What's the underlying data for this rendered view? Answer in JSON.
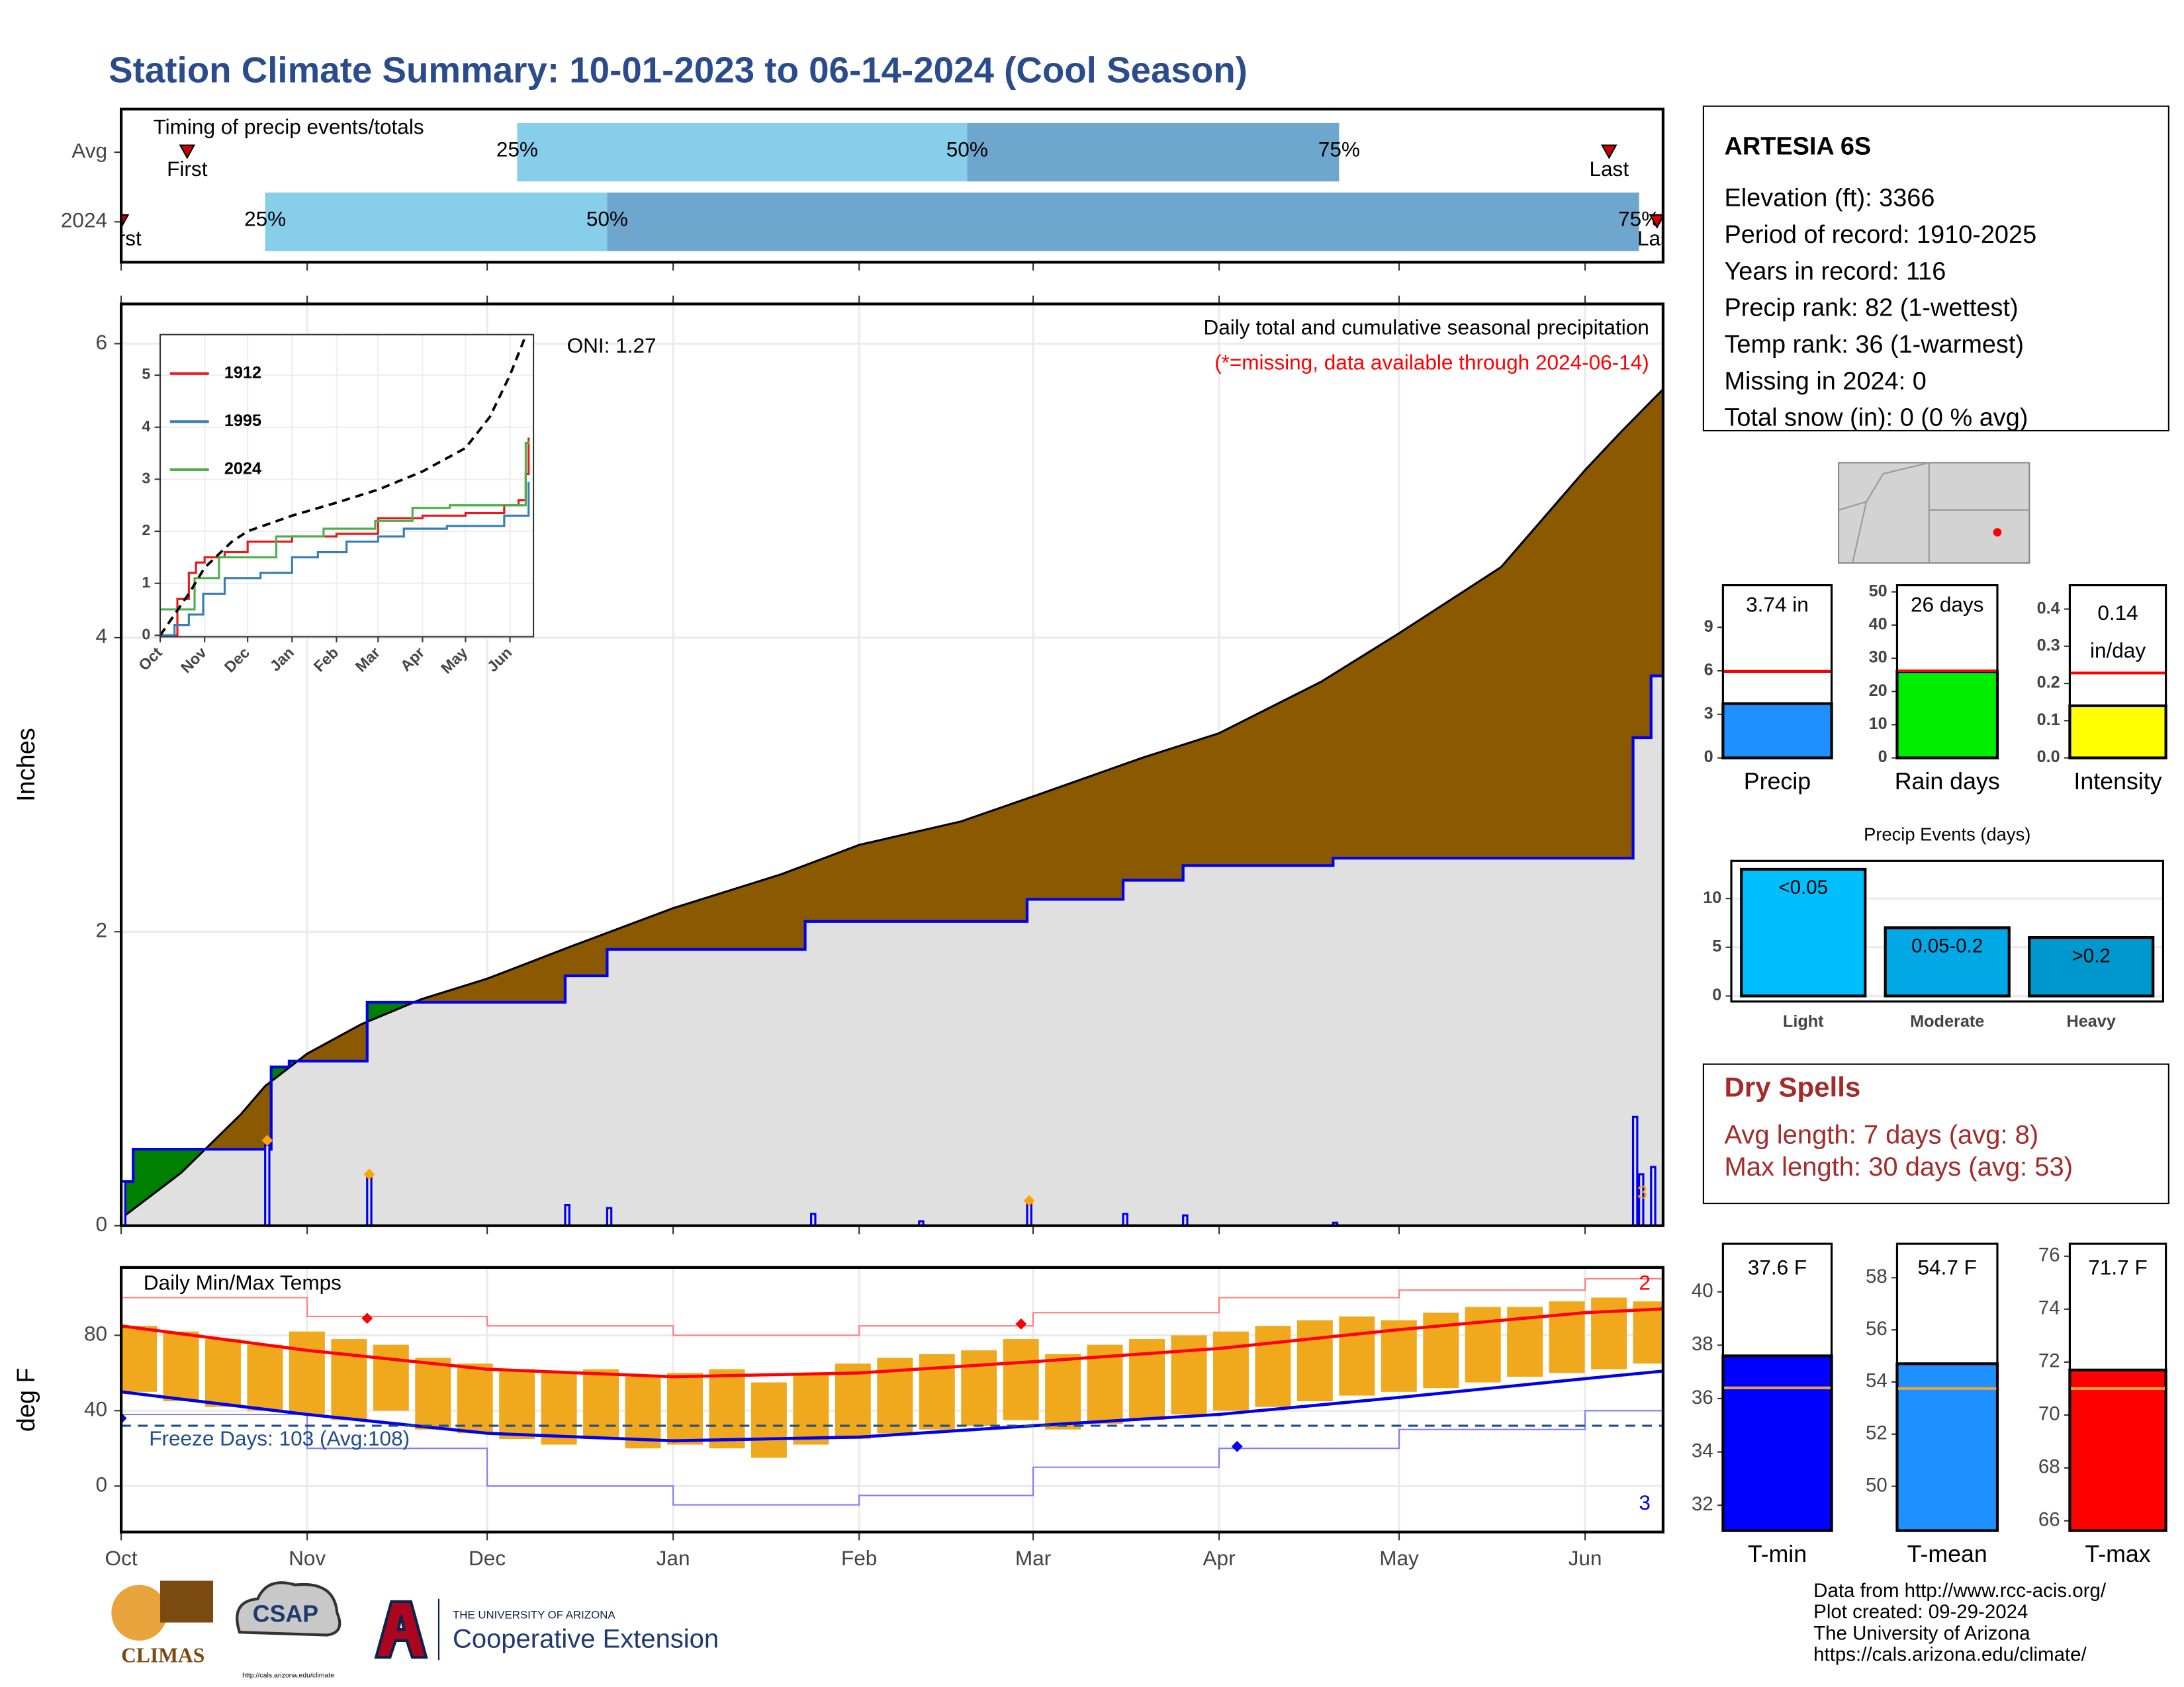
{
  "title": "Station Climate Summary: 10-01-2023 to 06-14-2024 (Cool Season)",
  "station": {
    "name": "ARTESIA 6S",
    "lines": [
      "Elevation (ft): 3366",
      "Period of record: 1910-2025",
      "Years in record: 116",
      "Precip rank: 82 (1-wettest)",
      "Temp rank: 36 (1-warmest)",
      "Missing in 2024: 0",
      "Total snow (in): 0 (0 % avg)"
    ]
  },
  "dry_spells": {
    "title": "Dry Spells",
    "lines": [
      "Avg length: 7 days (avg: 8)",
      "Max length: 30 days (avg: 53)"
    ]
  },
  "footer": [
    "Data from http://www.rcc-acis.org/",
    "Plot created: 09-29-2024",
    "The University of Arizona",
    "https://cals.arizona.edu/climate/"
  ],
  "logos": {
    "climas": "CLIMAS",
    "csap": "CSAP",
    "csap_url": "http://cals.arizona.edu/climate",
    "ua": "THE UNIVERSITY OF ARIZONA",
    "extension": "Cooperative Extension"
  },
  "chart_data": [
    {
      "type": "timing",
      "title": "Timing of precip events/totals",
      "categories": [
        "Avg",
        "2024"
      ],
      "xlim": [
        0,
        257
      ],
      "xticks": [
        0,
        31,
        61,
        92,
        123,
        152,
        183,
        213,
        244
      ],
      "series": [
        {
          "name": "First",
          "values": [
            11,
            0
          ]
        },
        {
          "name": "25%",
          "values": [
            66,
            24
          ]
        },
        {
          "name": "50%",
          "values": [
            141,
            81
          ]
        },
        {
          "name": "75%",
          "values": [
            203,
            253
          ]
        },
        {
          "name": "Last",
          "values": [
            248,
            256
          ]
        }
      ],
      "colors": [
        "#87ceeb",
        "#6ea6cd"
      ],
      "marker_color": "#cc0000"
    },
    {
      "type": "cumulative",
      "title": "Daily total and cumulative seasonal precipitation",
      "subtitle": "(*=missing, data available through 2024-06-14)",
      "annotation": "ONI: 1.27",
      "y_label": "Inches",
      "xlim": [
        0,
        257
      ],
      "ylim": [
        0,
        6.27
      ],
      "yticks": [
        0,
        2,
        4,
        6
      ],
      "xticks": [
        0,
        31,
        61,
        92,
        123,
        152,
        183,
        213,
        244
      ],
      "grid": true,
      "average": {
        "color": "#8b5a00",
        "x": [
          0,
          10,
          20,
          24,
          31,
          40,
          50,
          61,
          75,
          92,
          110,
          123,
          140,
          152,
          170,
          183,
          200,
          213,
          230,
          244,
          250,
          257
        ],
        "values": [
          0.05,
          0.36,
          0.76,
          0.95,
          1.17,
          1.37,
          1.54,
          1.68,
          1.9,
          2.16,
          2.39,
          2.59,
          2.75,
          2.92,
          3.18,
          3.35,
          3.7,
          4.03,
          4.48,
          5.14,
          5.4,
          5.69
        ]
      },
      "season": {
        "color": "#0000ee",
        "above_color": "#008000",
        "fill": "#e0e0e0",
        "x": [
          0,
          2,
          24,
          25,
          28,
          41,
          74,
          81,
          114,
          151,
          167,
          177,
          202,
          252,
          255,
          257
        ],
        "values": [
          0.3,
          0.52,
          0.52,
          1.08,
          1.12,
          1.52,
          1.7,
          1.88,
          2.07,
          2.22,
          2.35,
          2.45,
          2.5,
          3.32,
          3.74,
          3.74
        ]
      },
      "daily": {
        "color": "#0000ee",
        "x": [
          0,
          24,
          41,
          74,
          81,
          115,
          133,
          151,
          167,
          177,
          202,
          252,
          253,
          255
        ],
        "values": [
          0.3,
          0.55,
          0.35,
          0.14,
          0.12,
          0.08,
          0.03,
          0.15,
          0.08,
          0.07,
          0.02,
          0.74,
          0.35,
          0.4
        ]
      },
      "markers": {
        "color": "#ffa500",
        "x": [
          24,
          41,
          151
        ],
        "values": [
          0.58,
          0.35,
          0.17
        ]
      },
      "count": 3
    },
    {
      "type": "inset",
      "xlim": [
        0,
        257
      ],
      "ylim": [
        0,
        5.78
      ],
      "yticks": [
        0,
        1,
        2,
        3,
        4,
        5
      ],
      "xticks": [
        {
          "value": 0,
          "label": "Oct"
        },
        {
          "value": 31,
          "label": "Nov"
        },
        {
          "value": 61,
          "label": "Dec"
        },
        {
          "value": 92,
          "label": "Jan"
        },
        {
          "value": 123,
          "label": "Feb"
        },
        {
          "value": 152,
          "label": "Mar"
        },
        {
          "value": 183,
          "label": "Apr"
        },
        {
          "value": 213,
          "label": "May"
        },
        {
          "value": 244,
          "label": "Jun"
        }
      ],
      "average": {
        "x": [
          0,
          20,
          31,
          50,
          61,
          92,
          123,
          152,
          183,
          213,
          230,
          244,
          257
        ],
        "values": [
          0,
          0.8,
          1.3,
          1.8,
          2.0,
          2.3,
          2.55,
          2.8,
          3.15,
          3.6,
          4.2,
          5.0,
          5.9
        ]
      },
      "series": [
        {
          "name": "1912",
          "color": "#e41a1c",
          "x": [
            0,
            10,
            12,
            20,
            25,
            31,
            45,
            61,
            92,
            123,
            152,
            183,
            213,
            240,
            250,
            255,
            257
          ],
          "values": [
            0,
            0,
            0.7,
            1.2,
            1.4,
            1.5,
            1.6,
            1.8,
            1.9,
            1.95,
            2.25,
            2.3,
            2.35,
            2.5,
            2.6,
            3.1,
            3.8
          ]
        },
        {
          "name": "1995",
          "color": "#377eb8",
          "x": [
            0,
            10,
            20,
            30,
            45,
            70,
            92,
            110,
            130,
            152,
            170,
            200,
            240,
            257
          ],
          "values": [
            0,
            0.2,
            0.4,
            0.8,
            1.1,
            1.2,
            1.5,
            1.6,
            1.8,
            1.9,
            2.05,
            2.1,
            2.3,
            2.95
          ]
        },
        {
          "name": "2024",
          "color": "#4daf4a",
          "x": [
            0,
            24,
            41,
            81,
            114,
            150,
            176,
            202,
            251,
            255,
            257
          ],
          "values": [
            0.5,
            1.1,
            1.5,
            1.9,
            2.05,
            2.2,
            2.45,
            2.5,
            2.5,
            3.7,
            3.74
          ]
        }
      ]
    },
    {
      "type": "gauge",
      "categories": [
        "Precip"
      ],
      "values": [
        3.74
      ],
      "value_labels": [
        "3.74 in"
      ],
      "average": 5.96,
      "color": "#1e90ff",
      "avg_color": "#ff0000",
      "ylim": [
        0,
        11.9
      ],
      "yticks": [
        0,
        3,
        6,
        9
      ]
    },
    {
      "type": "gauge",
      "categories": [
        "Rain days"
      ],
      "values": [
        26
      ],
      "value_labels": [
        "26 days"
      ],
      "average": 26.2,
      "color": "#00ee00",
      "avg_color": "#ff0000",
      "ylim": [
        0,
        52
      ],
      "yticks": [
        0,
        10,
        20,
        30,
        40,
        50
      ]
    },
    {
      "type": "gauge",
      "categories": [
        "Intensity"
      ],
      "values": [
        0.14
      ],
      "value_labels": [
        [
          "0.14",
          "in/day"
        ]
      ],
      "average": 0.228,
      "color": "#ffff00",
      "avg_color": "#ff0000",
      "ylim": [
        0,
        0.464
      ],
      "yticks": [
        {
          "value": 0,
          "label": "0.0"
        },
        0.1,
        0.2,
        0.3,
        0.4
      ]
    },
    {
      "type": "bar",
      "title": "Precip Events (days)",
      "categories": [
        "Light",
        "Moderate",
        "Heavy"
      ],
      "values": [
        13,
        7,
        6
      ],
      "bin_labels": [
        "<0.05",
        "0.05-0.2",
        ">0.2"
      ],
      "colors": [
        "#00bfff",
        "#00a9e6",
        "#0098cc"
      ],
      "ylim": [
        -0.57,
        13.86
      ],
      "yticks": [
        0,
        5,
        10
      ],
      "grid": true
    },
    {
      "type": "temperature",
      "title": "Daily Min/Max Temps",
      "y_label": "deg F",
      "annotation": "Freeze Days: 103 (Avg:108)",
      "freeze": 32,
      "xlim": [
        0,
        257
      ],
      "ylim": [
        -24.4,
        116
      ],
      "yticks": [
        0,
        40,
        80
      ],
      "xticks": [
        {
          "value": 0,
          "label": "Oct"
        },
        {
          "value": 31,
          "label": "Nov"
        },
        {
          "value": 61,
          "label": "Dec"
        },
        {
          "value": 92,
          "label": "Jan"
        },
        {
          "value": 123,
          "label": "Feb"
        },
        {
          "value": 152,
          "label": "Mar"
        },
        {
          "value": 183,
          "label": "Apr"
        },
        {
          "value": 213,
          "label": "May"
        },
        {
          "value": 244,
          "label": "Jun"
        }
      ],
      "grid": true,
      "daily": {
        "color": "#f0a81c",
        "x": [
          0,
          7,
          14,
          21,
          28,
          35,
          42,
          49,
          56,
          63,
          70,
          77,
          84,
          91,
          98,
          105,
          112,
          119,
          126,
          133,
          140,
          147,
          154,
          161,
          168,
          175,
          182,
          189,
          196,
          203,
          210,
          217,
          224,
          231,
          238,
          245,
          252
        ],
        "low": [
          50,
          45,
          42,
          40,
          38,
          35,
          40,
          30,
          28,
          25,
          22,
          25,
          20,
          22,
          20,
          15,
          22,
          25,
          28,
          30,
          32,
          35,
          30,
          33,
          35,
          38,
          40,
          42,
          45,
          48,
          50,
          52,
          55,
          58,
          60,
          62,
          65
        ],
        "high": [
          85,
          82,
          78,
          75,
          82,
          78,
          75,
          68,
          65,
          62,
          60,
          62,
          58,
          60,
          62,
          55,
          60,
          65,
          68,
          70,
          72,
          78,
          70,
          75,
          78,
          80,
          82,
          85,
          88,
          90,
          88,
          92,
          95,
          95,
          98,
          100,
          98
        ]
      },
      "avg_max": {
        "color": "#ff0000",
        "x": [
          0,
          31,
          61,
          92,
          123,
          152,
          183,
          213,
          244,
          257
        ],
        "values": [
          85,
          72,
          62,
          58,
          60,
          66,
          73,
          83,
          92,
          94
        ]
      },
      "avg_min": {
        "color": "#0000ee",
        "x": [
          0,
          31,
          61,
          92,
          123,
          152,
          183,
          213,
          244,
          257
        ],
        "values": [
          50,
          38,
          28,
          24,
          26,
          32,
          38,
          47,
          57,
          61
        ]
      },
      "record_max": {
        "color": "#ff8080",
        "x": [
          0,
          31,
          61,
          92,
          123,
          152,
          183,
          213,
          244,
          257
        ],
        "values": [
          100,
          90,
          85,
          80,
          85,
          92,
          100,
          104,
          110,
          112
        ],
        "count": 2
      },
      "record_min": {
        "color": "#8080ff",
        "x": [
          0,
          31,
          61,
          92,
          123,
          152,
          183,
          213,
          244,
          257
        ],
        "values": [
          38,
          20,
          0,
          -10,
          -5,
          10,
          20,
          30,
          40,
          45
        ],
        "count": 3
      },
      "high_markers": {
        "color": "#ff0000",
        "x": [
          41,
          150
        ],
        "values": [
          89,
          86
        ]
      },
      "low_markers": {
        "color": "#0000ee",
        "x": [
          0,
          186
        ],
        "values": [
          36,
          21
        ]
      }
    },
    {
      "type": "gauge",
      "categories": [
        "T-min"
      ],
      "values": [
        37.6
      ],
      "value_labels": [
        "37.6 F"
      ],
      "average": 36.4,
      "color": "#0000ff",
      "avg_color": "#e8a33c",
      "ylim": [
        31.05,
        41.8
      ],
      "yticks": [
        32,
        34,
        36,
        38,
        40
      ]
    },
    {
      "type": "gauge",
      "categories": [
        "T-mean"
      ],
      "values": [
        54.7
      ],
      "value_labels": [
        "54.7 F"
      ],
      "average": 53.75,
      "color": "#1e90ff",
      "avg_color": "#e8a33c",
      "ylim": [
        48.3,
        59.3
      ],
      "yticks": [
        50,
        52,
        54,
        56,
        58
      ]
    },
    {
      "type": "gauge",
      "categories": [
        "T-max"
      ],
      "values": [
        71.7
      ],
      "value_labels": [
        "71.7 F"
      ],
      "average": 71.0,
      "color": "#ff0000",
      "avg_color": "#e8a33c",
      "ylim": [
        65.63,
        76.47
      ],
      "yticks": [
        66,
        68,
        70,
        72,
        74,
        76
      ]
    }
  ]
}
